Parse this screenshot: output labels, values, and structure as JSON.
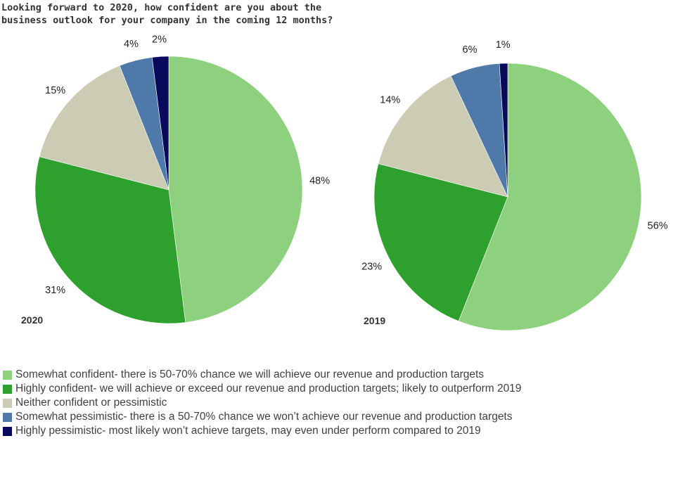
{
  "title": {
    "line1": "Looking forward to 2020, how confident are you about the",
    "line2": "business outlook for your company in the coming 12 months?"
  },
  "colors": [
    "#8dd17e",
    "#2ea02e",
    "#cccbb3",
    "#4f79a8",
    "#0a0a5c"
  ],
  "legend": [
    "Somewhat confident- there is 50-70% chance we will achieve our revenue and production targets",
    "Highly confident- we will achieve or exceed our revenue and production targets; likely to outperform 2019",
    "Neither confident or pessimistic",
    "Somewhat pessimistic- there is a 50-70% chance we won’t achieve our revenue and production targets",
    "Highly pessimistic- most likely won’t achieve targets, may even under perform compared to 2019"
  ],
  "chart_data": [
    {
      "type": "pie",
      "title": "2020",
      "categories": [
        "Somewhat confident- there is 50-70% chance we will achieve our revenue and production targets",
        "Highly confident- we will achieve or exceed our revenue and production targets; likely to outperform 2019",
        "Neither confident or pessimistic",
        "Somewhat pessimistic- there is a 50-70% chance we won’t achieve our revenue and production targets",
        "Highly pessimistic- most likely won’t achieve targets, may even under perform compared to 2019"
      ],
      "values": [
        48,
        31,
        15,
        4,
        2
      ],
      "labels": [
        "48%",
        "31%",
        "15%",
        "4%",
        "2%"
      ]
    },
    {
      "type": "pie",
      "title": "2019",
      "categories": [
        "Somewhat confident- there is 50-70% chance we will achieve our revenue and production targets",
        "Highly confident- we will achieve or exceed our revenue and production targets; likely to outperform 2019",
        "Neither confident or pessimistic",
        "Somewhat pessimistic- there is a 50-70% chance we won’t achieve our revenue and production targets",
        "Highly pessimistic- most likely won’t achieve targets, may even under perform compared to 2019"
      ],
      "values": [
        56,
        23,
        14,
        6,
        1
      ],
      "labels": [
        "56%",
        "23%",
        "14%",
        "6%",
        "1%"
      ]
    }
  ]
}
